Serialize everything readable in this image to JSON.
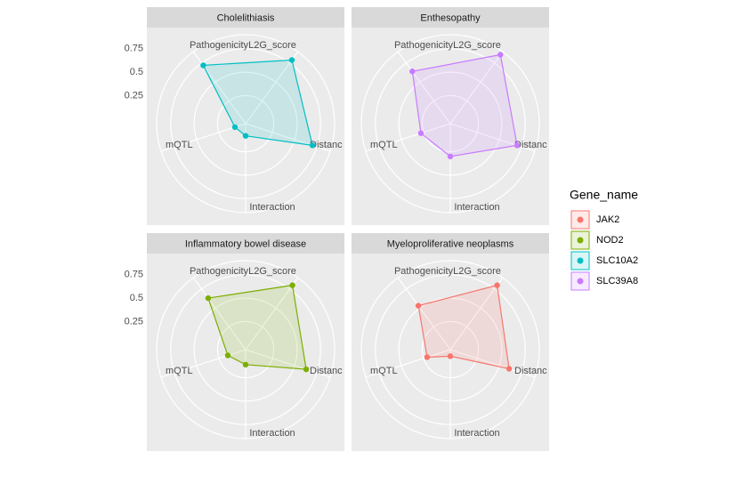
{
  "chart_data": [
    {
      "type": "radar",
      "title": "Cholelithiasis",
      "categories": [
        "Distanc",
        "L2G_score",
        "Pathogenicity",
        "mQTL",
        "Interaction"
      ],
      "series": [
        {
          "name": "SLC10A2",
          "color": "#00bfc4",
          "values": [
            0.7,
            0.79,
            0.72,
            0.07,
            0.08
          ]
        }
      ],
      "ylim": [
        -0.05,
        0.9
      ],
      "yticks": [
        0.25,
        0.5,
        0.75
      ]
    },
    {
      "type": "radar",
      "title": "Enthesopathy",
      "categories": [
        "Distanc",
        "L2G_score",
        "Pathogenicity",
        "mQTL",
        "Interaction"
      ],
      "series": [
        {
          "name": "SLC39A8",
          "color": "#c77cff",
          "values": [
            0.7,
            0.86,
            0.64,
            0.28,
            0.3
          ]
        }
      ],
      "ylim": [
        -0.05,
        0.9
      ],
      "yticks": [
        0.25,
        0.5,
        0.75
      ]
    },
    {
      "type": "radar",
      "title": "Inflammatory bowel disease",
      "categories": [
        "Distanc",
        "L2G_score",
        "Pathogenicity",
        "mQTL",
        "Interaction"
      ],
      "series": [
        {
          "name": "NOD2",
          "color": "#7cae00",
          "values": [
            0.63,
            0.8,
            0.63,
            0.15,
            0.11
          ]
        }
      ],
      "ylim": [
        -0.05,
        0.9
      ],
      "yticks": [
        0.25,
        0.5,
        0.75
      ]
    },
    {
      "type": "radar",
      "title": "Myeloproliferative neoplasms",
      "categories": [
        "Distanc",
        "L2G_score",
        "Pathogenicity",
        "mQTL",
        "Interaction"
      ],
      "series": [
        {
          "name": "JAK2",
          "color": "#f8766d",
          "values": [
            0.61,
            0.8,
            0.53,
            0.21,
            0.02
          ]
        }
      ],
      "ylim": [
        -0.05,
        0.9
      ],
      "yticks": [
        0.25,
        0.5,
        0.75
      ]
    }
  ],
  "legend": {
    "title": "Gene_name",
    "items": [
      {
        "name": "JAK2",
        "color": "#f8766d"
      },
      {
        "name": "NOD2",
        "color": "#7cae00"
      },
      {
        "name": "SLC10A2",
        "color": "#00bfc4"
      },
      {
        "name": "SLC39A8",
        "color": "#c77cff"
      }
    ]
  }
}
